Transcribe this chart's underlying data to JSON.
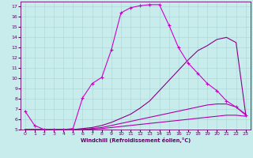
{
  "background_color": "#c8ecec",
  "grid_color": "#b0d8d8",
  "line_color_marked": "#cc00cc",
  "line_color_plain1": "#880088",
  "line_color_plain2": "#aa00aa",
  "line_color_plain3": "#aa00aa",
  "xlabel": "Windchill (Refroidissement éolien,°C)",
  "xlim": [
    -0.5,
    23.5
  ],
  "ylim": [
    5,
    17.5
  ],
  "xticks": [
    0,
    1,
    2,
    3,
    4,
    5,
    6,
    7,
    8,
    9,
    10,
    11,
    12,
    13,
    14,
    15,
    16,
    17,
    18,
    19,
    20,
    21,
    22,
    23
  ],
  "yticks": [
    5,
    6,
    7,
    8,
    9,
    10,
    11,
    12,
    13,
    14,
    15,
    16,
    17
  ],
  "line1_x": [
    0,
    1,
    2,
    3,
    4,
    5,
    6,
    7,
    8,
    9,
    10,
    11,
    12,
    13,
    14,
    15,
    16,
    17,
    18,
    19,
    20,
    21,
    22,
    23
  ],
  "line1_y": [
    6.8,
    5.4,
    5.0,
    5.0,
    5.0,
    5.1,
    8.1,
    9.5,
    10.1,
    12.8,
    16.4,
    16.9,
    17.1,
    17.2,
    17.2,
    15.2,
    13.0,
    11.5,
    10.5,
    9.5,
    8.8,
    7.8,
    7.2,
    6.4
  ],
  "line2_x": [
    0,
    1,
    2,
    3,
    4,
    5,
    6,
    7,
    8,
    9,
    10,
    11,
    12,
    13,
    14,
    15,
    16,
    17,
    18,
    19,
    20,
    21,
    22,
    23
  ],
  "line2_y": [
    5.0,
    5.0,
    5.0,
    5.0,
    5.0,
    5.0,
    5.1,
    5.2,
    5.4,
    5.7,
    6.1,
    6.5,
    7.1,
    7.8,
    8.8,
    9.8,
    10.8,
    11.8,
    12.7,
    13.2,
    13.8,
    14.0,
    13.5,
    6.5
  ],
  "line3_x": [
    0,
    1,
    2,
    3,
    4,
    5,
    6,
    7,
    8,
    9,
    10,
    11,
    12,
    13,
    14,
    15,
    16,
    17,
    18,
    19,
    20,
    21,
    22,
    23
  ],
  "line3_y": [
    5.0,
    5.0,
    5.0,
    5.0,
    5.0,
    5.0,
    5.0,
    5.1,
    5.2,
    5.4,
    5.6,
    5.8,
    6.0,
    6.2,
    6.4,
    6.6,
    6.8,
    7.0,
    7.2,
    7.4,
    7.5,
    7.5,
    7.2,
    6.5
  ],
  "line4_x": [
    0,
    1,
    2,
    3,
    4,
    5,
    6,
    7,
    8,
    9,
    10,
    11,
    12,
    13,
    14,
    15,
    16,
    17,
    18,
    19,
    20,
    21,
    22,
    23
  ],
  "line4_y": [
    5.0,
    5.0,
    5.0,
    5.0,
    5.0,
    5.0,
    5.0,
    5.05,
    5.1,
    5.2,
    5.3,
    5.4,
    5.5,
    5.6,
    5.7,
    5.8,
    5.9,
    6.0,
    6.1,
    6.2,
    6.3,
    6.4,
    6.4,
    6.3
  ]
}
